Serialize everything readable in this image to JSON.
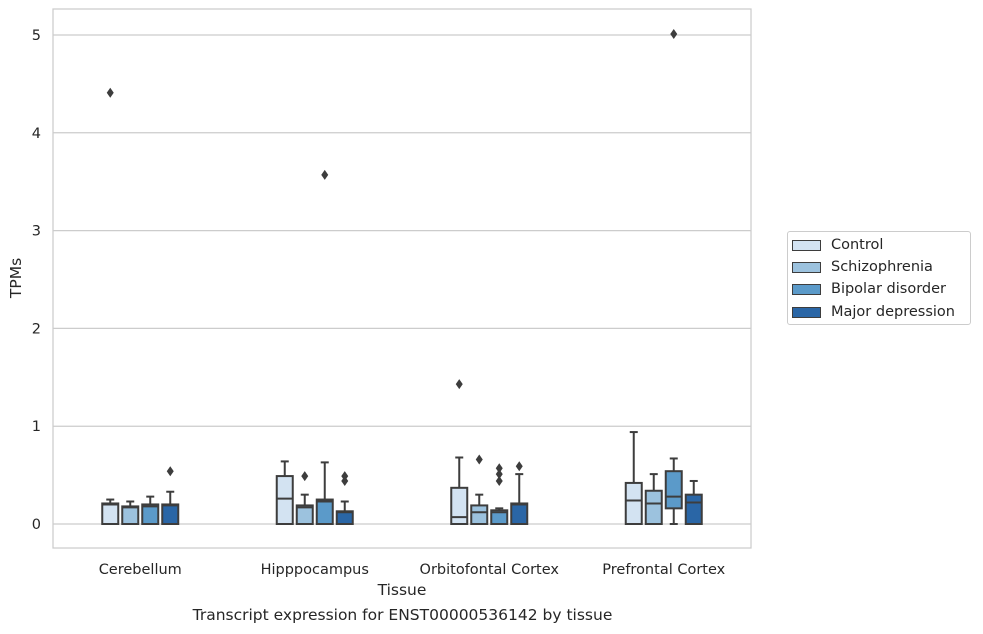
{
  "chart_data": {
    "type": "box",
    "title": "",
    "xlabel": "Tissue",
    "ylabel": "TPMs",
    "caption": "Transcript expression for ENST00000536142 by tissue",
    "ylim": [
      -0.25,
      5.27
    ],
    "yticks": [
      0,
      1,
      2,
      3,
      4,
      5
    ],
    "grid": "horizontal",
    "legend_position": "center-right",
    "categories": [
      "Cerebellum",
      "Hipppocampus",
      "Orbitofontal Cortex",
      "Prefrontal Cortex"
    ],
    "series": [
      {
        "name": "Control",
        "color": "#d3e3f2",
        "boxes": [
          {
            "whisker_low": 0.0,
            "q1": 0.0,
            "median": 0.2,
            "q3": 0.21,
            "whisker_high": 0.25,
            "outliers": [
              4.41
            ]
          },
          {
            "whisker_low": 0.0,
            "q1": 0.0,
            "median": 0.26,
            "q3": 0.49,
            "whisker_high": 0.64,
            "outliers": []
          },
          {
            "whisker_low": 0.0,
            "q1": 0.0,
            "median": 0.07,
            "q3": 0.37,
            "whisker_high": 0.68,
            "outliers": [
              1.43
            ]
          },
          {
            "whisker_low": 0.0,
            "q1": 0.0,
            "median": 0.24,
            "q3": 0.42,
            "whisker_high": 0.94,
            "outliers": []
          }
        ]
      },
      {
        "name": "Schizophrenia",
        "color": "#9cc2de",
        "boxes": [
          {
            "whisker_low": 0.0,
            "q1": 0.0,
            "median": 0.17,
            "q3": 0.18,
            "whisker_high": 0.23,
            "outliers": []
          },
          {
            "whisker_low": 0.0,
            "q1": 0.0,
            "median": 0.17,
            "q3": 0.19,
            "whisker_high": 0.3,
            "outliers": [
              0.49
            ]
          },
          {
            "whisker_low": 0.0,
            "q1": 0.0,
            "median": 0.12,
            "q3": 0.19,
            "whisker_high": 0.3,
            "outliers": [
              0.66
            ]
          },
          {
            "whisker_low": 0.0,
            "q1": 0.0,
            "median": 0.21,
            "q3": 0.34,
            "whisker_high": 0.51,
            "outliers": []
          }
        ]
      },
      {
        "name": "Bipolar disorder",
        "color": "#5b9ac9",
        "boxes": [
          {
            "whisker_low": 0.0,
            "q1": 0.0,
            "median": 0.18,
            "q3": 0.2,
            "whisker_high": 0.28,
            "outliers": []
          },
          {
            "whisker_low": 0.0,
            "q1": 0.0,
            "median": 0.23,
            "q3": 0.25,
            "whisker_high": 0.63,
            "outliers": [
              3.57
            ]
          },
          {
            "whisker_low": 0.0,
            "q1": 0.0,
            "median": 0.12,
            "q3": 0.14,
            "whisker_high": 0.16,
            "outliers": [
              0.44,
              0.51,
              0.57
            ]
          },
          {
            "whisker_low": 0.0,
            "q1": 0.16,
            "median": 0.28,
            "q3": 0.54,
            "whisker_high": 0.67,
            "outliers": [
              5.01
            ]
          }
        ]
      },
      {
        "name": "Major depression",
        "color": "#2a66a6",
        "boxes": [
          {
            "whisker_low": 0.0,
            "q1": 0.0,
            "median": 0.19,
            "q3": 0.2,
            "whisker_high": 0.33,
            "outliers": [
              0.54
            ]
          },
          {
            "whisker_low": 0.0,
            "q1": 0.0,
            "median": 0.12,
            "q3": 0.13,
            "whisker_high": 0.23,
            "outliers": [
              0.44,
              0.49
            ]
          },
          {
            "whisker_low": 0.0,
            "q1": 0.0,
            "median": 0.2,
            "q3": 0.21,
            "whisker_high": 0.51,
            "outliers": [
              0.59
            ]
          },
          {
            "whisker_low": 0.0,
            "q1": 0.0,
            "median": 0.22,
            "q3": 0.3,
            "whisker_high": 0.44,
            "outliers": []
          }
        ]
      }
    ]
  }
}
